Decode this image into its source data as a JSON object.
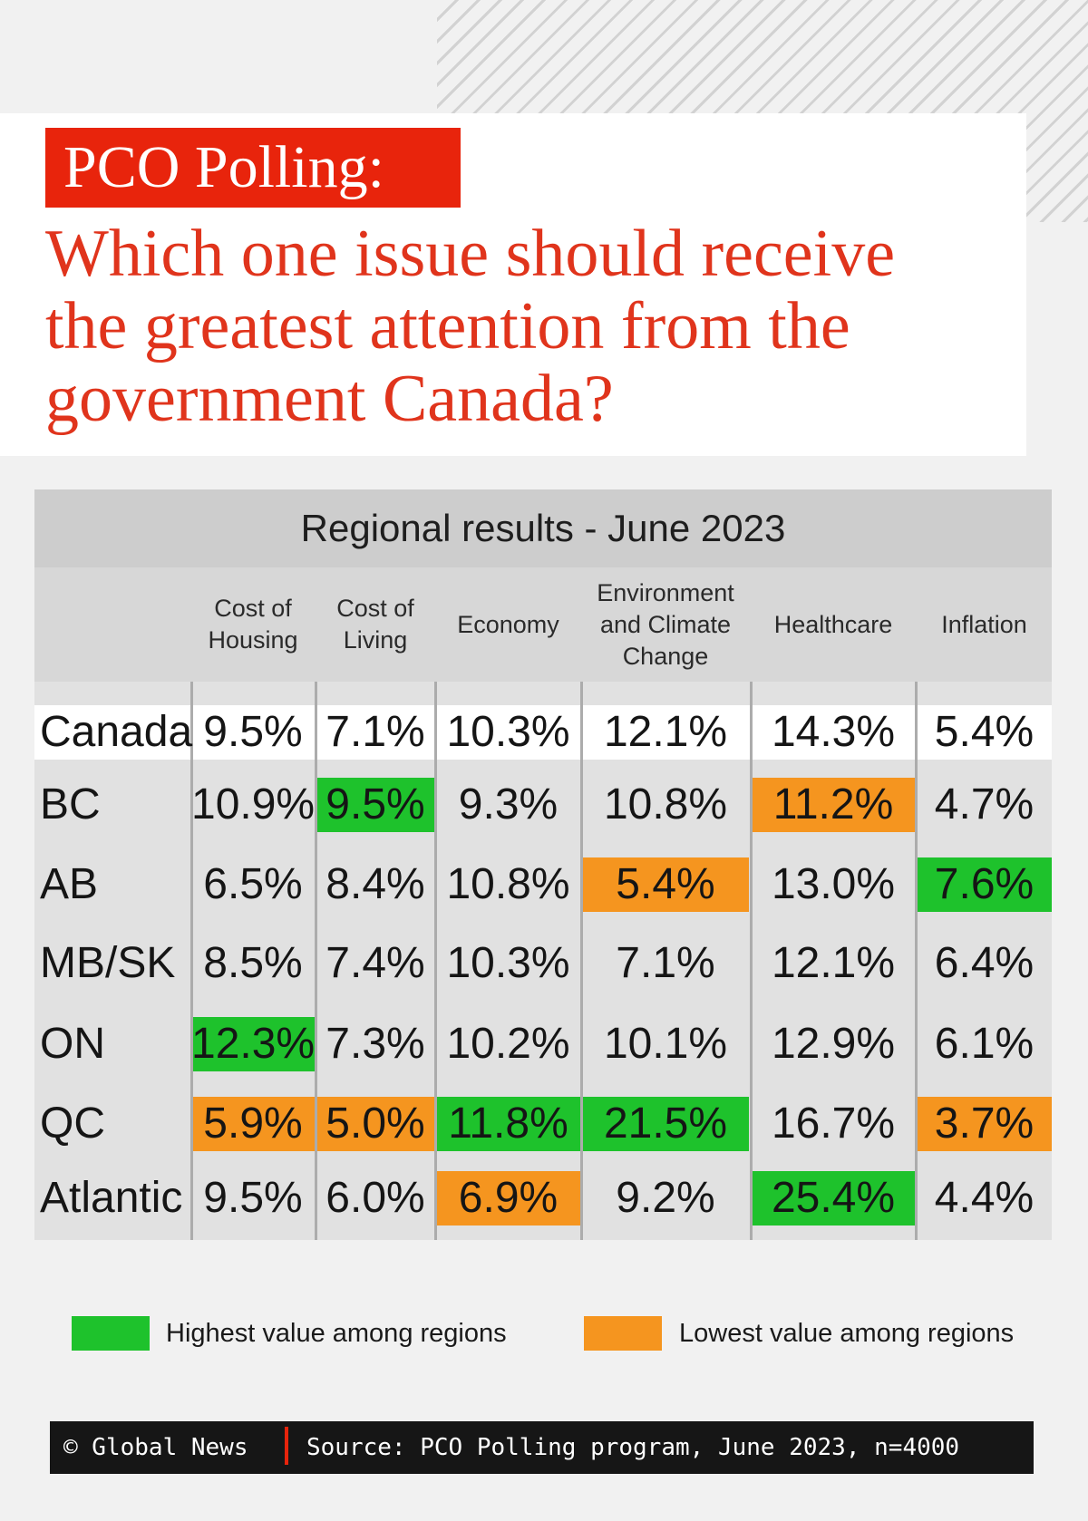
{
  "header": {
    "tag": "PCO Polling:",
    "question_lines": [
      "Which one issue should receive",
      "the greatest attention from the",
      "government Canada?"
    ]
  },
  "colors": {
    "accent": "#e8240c",
    "highest": "#1ec22c",
    "lowest": "#f5951f"
  },
  "chart_data": {
    "type": "table",
    "title": "Regional results - June 2023",
    "columns": [
      [
        "Cost of",
        "Housing"
      ],
      [
        "Cost of",
        "Living"
      ],
      [
        "Economy"
      ],
      [
        "Environment",
        "and Climate",
        "Change"
      ],
      [
        "Healthcare"
      ],
      [
        "Inflation"
      ]
    ],
    "rows": [
      {
        "region": "Canada",
        "values": [
          "9.5%",
          "7.1%",
          "10.3%",
          "12.1%",
          "14.3%",
          "5.4%"
        ],
        "marks": [
          "",
          "",
          "",
          "",
          "",
          ""
        ]
      },
      {
        "region": "BC",
        "values": [
          "10.9%",
          "9.5%",
          "9.3%",
          "10.8%",
          "11.2%",
          "4.7%"
        ],
        "marks": [
          "",
          "high",
          "",
          "",
          "low",
          ""
        ]
      },
      {
        "region": "AB",
        "values": [
          "6.5%",
          "8.4%",
          "10.8%",
          "5.4%",
          "13.0%",
          "7.6%"
        ],
        "marks": [
          "",
          "",
          "",
          "low",
          "",
          "high"
        ]
      },
      {
        "region": "MB/SK",
        "values": [
          "8.5%",
          "7.4%",
          "10.3%",
          "7.1%",
          "12.1%",
          "6.4%"
        ],
        "marks": [
          "",
          "",
          "",
          "",
          "",
          ""
        ]
      },
      {
        "region": "ON",
        "values": [
          "12.3%",
          "7.3%",
          "10.2%",
          "10.1%",
          "12.9%",
          "6.1%"
        ],
        "marks": [
          "high",
          "",
          "",
          "",
          "",
          ""
        ]
      },
      {
        "region": "QC",
        "values": [
          "5.9%",
          "5.0%",
          "11.8%",
          "21.5%",
          "16.7%",
          "3.7%"
        ],
        "marks": [
          "low",
          "low",
          "high",
          "high",
          "",
          "low"
        ]
      },
      {
        "region": "Atlantic",
        "values": [
          "9.5%",
          "6.0%",
          "6.9%",
          "9.2%",
          "25.4%",
          "4.4%"
        ],
        "marks": [
          "",
          "",
          "low",
          "",
          "high",
          ""
        ]
      }
    ]
  },
  "legend": {
    "highest": "Highest value among regions",
    "lowest": "Lowest value among regions"
  },
  "footer": {
    "credit": "© Global News",
    "source": "Source: PCO Polling program, June 2023, n=4000"
  }
}
